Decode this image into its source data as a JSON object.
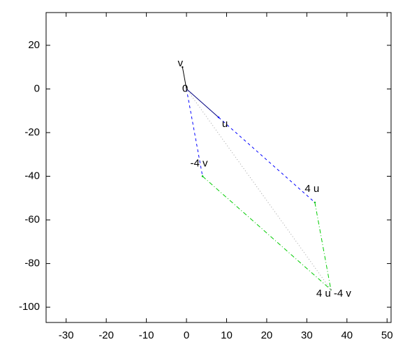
{
  "chart_data": {
    "type": "line",
    "xlim": [
      -35,
      51
    ],
    "ylim": [
      -107,
      35
    ],
    "xticks": [
      -30,
      -20,
      -10,
      0,
      10,
      20,
      30,
      40,
      50
    ],
    "yticks": [
      -100,
      -80,
      -60,
      -40,
      -20,
      0,
      20
    ],
    "series": [
      {
        "color": "#000000",
        "dash": "solid",
        "x": [
          0,
          -1
        ],
        "y": [
          0,
          10
        ]
      },
      {
        "color": "#000080",
        "dash": "solid",
        "x": [
          0,
          8
        ],
        "y": [
          0,
          -13
        ]
      },
      {
        "color": "#0000ff",
        "dash": "dashed",
        "x": [
          0,
          4
        ],
        "y": [
          0,
          -40
        ]
      },
      {
        "color": "#0000ff",
        "dash": "dashed",
        "x": [
          8,
          32
        ],
        "y": [
          -13,
          -52
        ]
      },
      {
        "color": "#00cc00",
        "dash": "dashdot",
        "x": [
          4,
          36
        ],
        "y": [
          -40,
          -92
        ]
      },
      {
        "color": "#00cc00",
        "dash": "dashdot",
        "x": [
          32,
          36
        ],
        "y": [
          -52,
          -92
        ]
      },
      {
        "color": "#a0a0a0",
        "dash": "dotted",
        "x": [
          0,
          36
        ],
        "y": [
          0,
          -92
        ]
      }
    ],
    "annotations": [
      {
        "text": "v",
        "x": -1,
        "y": 10
      },
      {
        "text": "0",
        "x": 0,
        "y": 0
      },
      {
        "text": "u",
        "x": 8,
        "y": -13
      },
      {
        "text": "-4 v",
        "x": 4,
        "y": -40
      },
      {
        "text": "4 u",
        "x": 32,
        "y": -52
      },
      {
        "text": "4 u -4 v",
        "x": 36,
        "y": -92
      }
    ]
  }
}
